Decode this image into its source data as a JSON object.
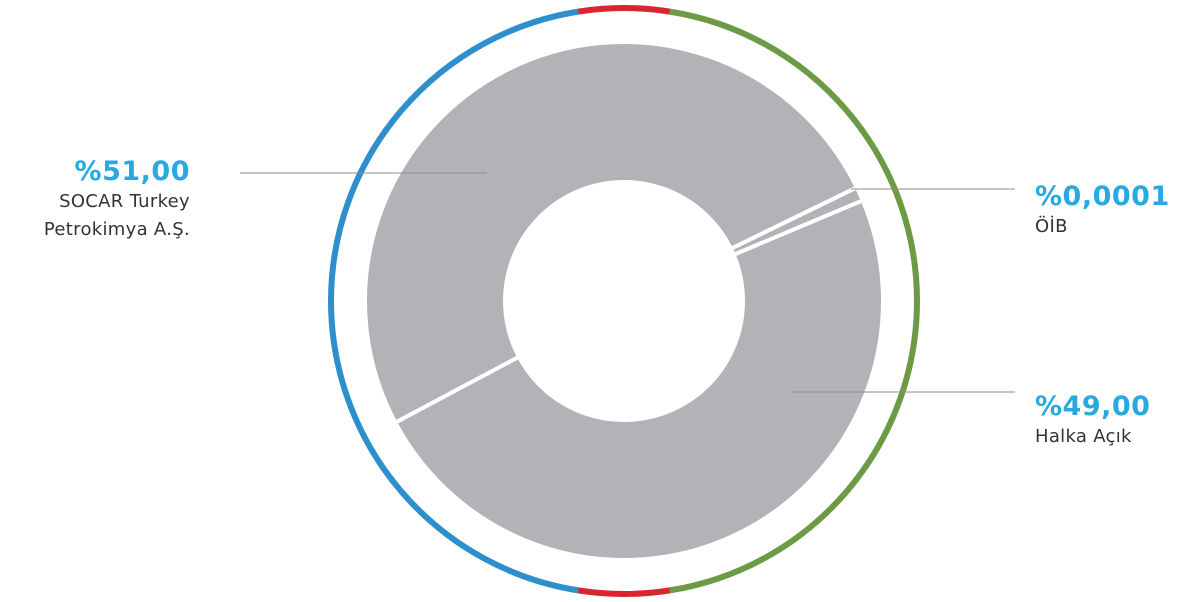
{
  "chart_data": {
    "type": "pie",
    "donut": true,
    "slices": [
      {
        "label": "SOCAR Turkey Petrokimya A.Ş.",
        "value": 51.0,
        "display": "%51,00"
      },
      {
        "label": "ÖİB",
        "value": 0.0001,
        "display": "%0,0001"
      },
      {
        "label": "Halka Açık",
        "value": 49.0,
        "display": "%49,00"
      }
    ],
    "labels": {
      "socar_line1": "SOCAR Turkey",
      "socar_line2": "Petrokimya A.Ş.",
      "oib": "ÖİB",
      "halka": "Halka Açık"
    },
    "colors": {
      "slice": "#b1b3b6",
      "accent_text": "#27a9e1",
      "ring_blue": "#2e8fcd",
      "ring_red": "#d9262e",
      "ring_green": "#6c9a45",
      "leader": "#8c8c8c"
    }
  }
}
